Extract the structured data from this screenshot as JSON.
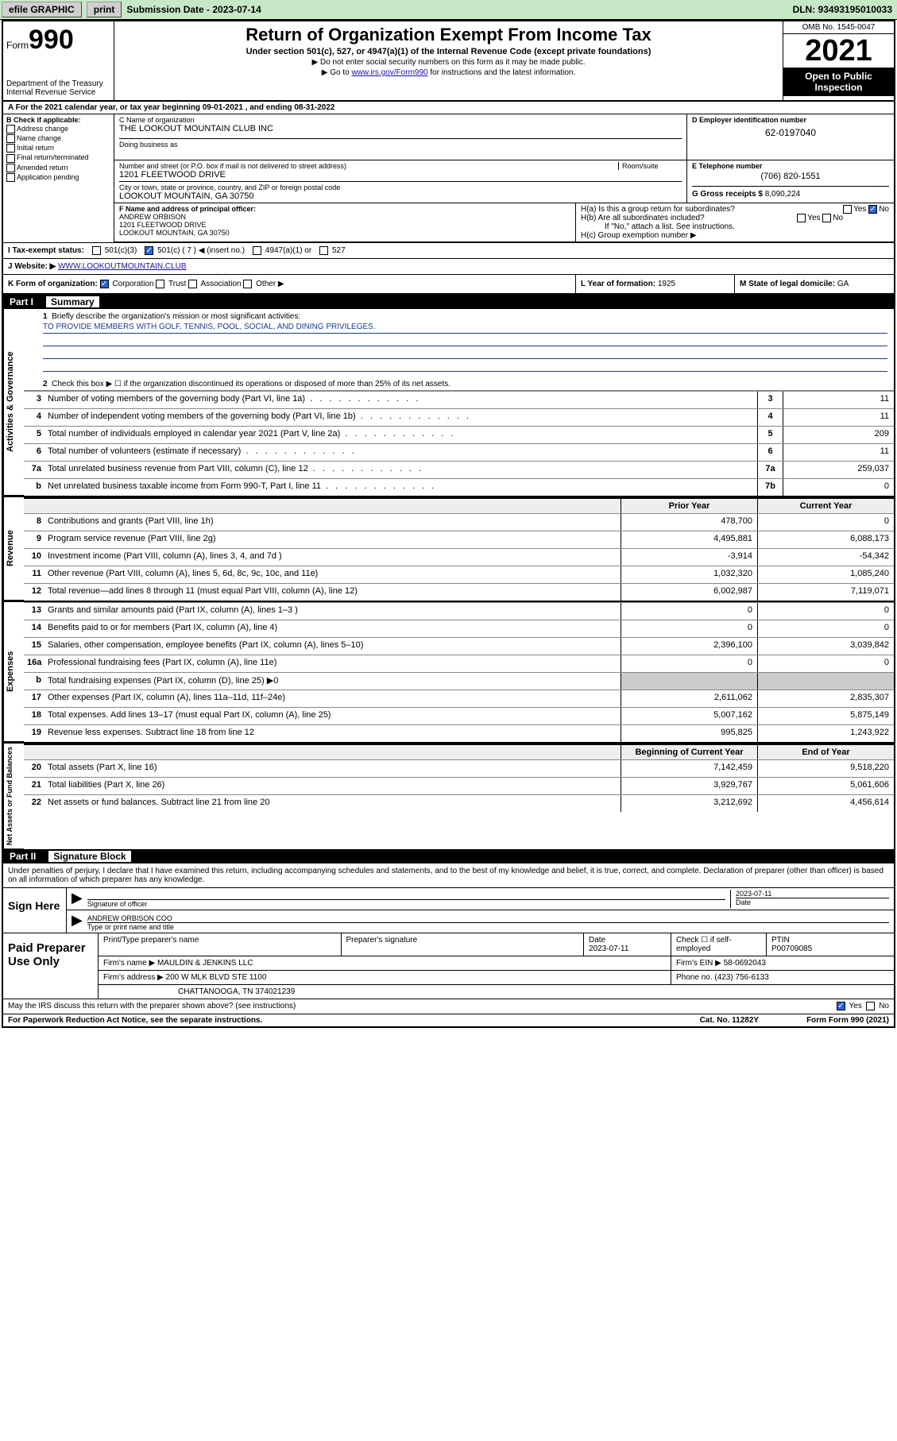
{
  "topbar": {
    "efile": "efile GRAPHIC",
    "print": "print",
    "submission": "Submission Date - 2023-07-14",
    "dln": "DLN: 93493195010033"
  },
  "header": {
    "form_word": "Form",
    "form_no": "990",
    "dept": "Department of the Treasury Internal Revenue Service",
    "title": "Return of Organization Exempt From Income Tax",
    "sub": "Under section 501(c), 527, or 4947(a)(1) of the Internal Revenue Code (except private foundations)",
    "note1": "▶ Do not enter social security numbers on this form as it may be made public.",
    "note2_pre": "▶ Go to ",
    "note2_link": "www.irs.gov/Form990",
    "note2_post": " for instructions and the latest information.",
    "omb": "OMB No. 1545-0047",
    "year": "2021",
    "open": "Open to Public Inspection"
  },
  "row_a": "A For the 2021 calendar year, or tax year beginning 09-01-2021   , and ending 08-31-2022",
  "b": {
    "label": "B Check if applicable:",
    "opts": [
      "Address change",
      "Name change",
      "Initial return",
      "Final return/terminated",
      "Amended return",
      "Application pending"
    ]
  },
  "c": {
    "name_lbl": "C Name of organization",
    "name": "THE LOOKOUT MOUNTAIN CLUB INC",
    "dba_lbl": "Doing business as",
    "addr_lbl": "Number and street (or P.O. box if mail is not delivered to street address)",
    "room_lbl": "Room/suite",
    "addr": "1201 FLEETWOOD DRIVE",
    "city_lbl": "City or town, state or province, country, and ZIP or foreign postal code",
    "city": "LOOKOUT MOUNTAIN, GA  30750"
  },
  "d": {
    "lbl": "D Employer identification number",
    "val": "62-0197040"
  },
  "e": {
    "lbl": "E Telephone number",
    "val": "(706) 820-1551"
  },
  "g": {
    "lbl": "G Gross receipts $",
    "val": "8,090,224"
  },
  "f": {
    "lbl": "F Name and address of principal officer:",
    "name": "ANDREW ORBISON",
    "addr1": "1201 FLEETWOOD DRIVE",
    "addr2": "LOOKOUT MOUNTAIN, GA  30750"
  },
  "h": {
    "a": "H(a)  Is this a group return for subordinates?",
    "b": "H(b)  Are all subordinates included?",
    "bnote": "If \"No,\" attach a list. See instructions.",
    "c": "H(c)  Group exemption number ▶",
    "yes": "Yes",
    "no": "No"
  },
  "i": {
    "lbl": "I  Tax-exempt status:",
    "c3": "501(c)(3)",
    "c": "501(c) ( 7 ) ◀ (insert no.)",
    "a1": "4947(a)(1) or",
    "s527": "527"
  },
  "j": {
    "lbl": "J  Website: ▶",
    "val": "WWW.LOOKOUTMOUNTAIN.CLUB"
  },
  "k": {
    "lbl": "K Form of organization:",
    "corp": "Corporation",
    "trust": "Trust",
    "assoc": "Association",
    "other": "Other ▶"
  },
  "l": {
    "lbl": "L Year of formation:",
    "val": "1925"
  },
  "m": {
    "lbl": "M State of legal domicile:",
    "val": "GA"
  },
  "part1": {
    "label": "Part I",
    "title": "Summary"
  },
  "s1": {
    "n1lbl": "Briefly describe the organization's mission or most significant activities:",
    "mission": "TO PROVIDE MEMBERS WITH GOLF, TENNIS, POOL, SOCIAL, AND DINING PRIVILEGES.",
    "n2": "Check this box ▶ ☐  if the organization discontinued its operations or disposed of more than 25% of its net assets.",
    "rows": [
      {
        "n": "3",
        "d": "Number of voting members of the governing body (Part VI, line 1a)",
        "box": "3",
        "v": "11"
      },
      {
        "n": "4",
        "d": "Number of independent voting members of the governing body (Part VI, line 1b)",
        "box": "4",
        "v": "11"
      },
      {
        "n": "5",
        "d": "Total number of individuals employed in calendar year 2021 (Part V, line 2a)",
        "box": "5",
        "v": "209"
      },
      {
        "n": "6",
        "d": "Total number of volunteers (estimate if necessary)",
        "box": "6",
        "v": "11"
      },
      {
        "n": "7a",
        "d": "Total unrelated business revenue from Part VIII, column (C), line 12",
        "box": "7a",
        "v": "259,037"
      },
      {
        "n": "b",
        "d": "Net unrelated business taxable income from Form 990-T, Part I, line 11",
        "box": "7b",
        "v": "0"
      }
    ]
  },
  "s2head": {
    "prior": "Prior Year",
    "current": "Current Year"
  },
  "revenue": [
    {
      "n": "8",
      "d": "Contributions and grants (Part VIII, line 1h)",
      "v1": "478,700",
      "v2": "0"
    },
    {
      "n": "9",
      "d": "Program service revenue (Part VIII, line 2g)",
      "v1": "4,495,881",
      "v2": "6,088,173"
    },
    {
      "n": "10",
      "d": "Investment income (Part VIII, column (A), lines 3, 4, and 7d )",
      "v1": "-3,914",
      "v2": "-54,342"
    },
    {
      "n": "11",
      "d": "Other revenue (Part VIII, column (A), lines 5, 6d, 8c, 9c, 10c, and 11e)",
      "v1": "1,032,320",
      "v2": "1,085,240"
    },
    {
      "n": "12",
      "d": "Total revenue—add lines 8 through 11 (must equal Part VIII, column (A), line 12)",
      "v1": "6,002,987",
      "v2": "7,119,071"
    }
  ],
  "expenses": [
    {
      "n": "13",
      "d": "Grants and similar amounts paid (Part IX, column (A), lines 1–3 )",
      "v1": "0",
      "v2": "0"
    },
    {
      "n": "14",
      "d": "Benefits paid to or for members (Part IX, column (A), line 4)",
      "v1": "0",
      "v2": "0"
    },
    {
      "n": "15",
      "d": "Salaries, other compensation, employee benefits (Part IX, column (A), lines 5–10)",
      "v1": "2,396,100",
      "v2": "3,039,842"
    },
    {
      "n": "16a",
      "d": "Professional fundraising fees (Part IX, column (A), line 11e)",
      "v1": "0",
      "v2": "0"
    },
    {
      "n": "b",
      "d": "Total fundraising expenses (Part IX, column (D), line 25) ▶0",
      "grey": true
    },
    {
      "n": "17",
      "d": "Other expenses (Part IX, column (A), lines 11a–11d, 11f–24e)",
      "v1": "2,611,062",
      "v2": "2,835,307"
    },
    {
      "n": "18",
      "d": "Total expenses. Add lines 13–17 (must equal Part IX, column (A), line 25)",
      "v1": "5,007,162",
      "v2": "5,875,149"
    },
    {
      "n": "19",
      "d": "Revenue less expenses. Subtract line 18 from line 12",
      "v1": "995,825",
      "v2": "1,243,922"
    }
  ],
  "s4head": {
    "begin": "Beginning of Current Year",
    "end": "End of Year"
  },
  "netassets": [
    {
      "n": "20",
      "d": "Total assets (Part X, line 16)",
      "v1": "7,142,459",
      "v2": "9,518,220"
    },
    {
      "n": "21",
      "d": "Total liabilities (Part X, line 26)",
      "v1": "3,929,767",
      "v2": "5,061,606"
    },
    {
      "n": "22",
      "d": "Net assets or fund balances. Subtract line 21 from line 20",
      "v1": "3,212,692",
      "v2": "4,456,614"
    }
  ],
  "part2": {
    "label": "Part II",
    "title": "Signature Block"
  },
  "sig": {
    "intro": "Under penalties of perjury, I declare that I have examined this return, including accompanying schedules and statements, and to the best of my knowledge and belief, it is true, correct, and complete. Declaration of preparer (other than officer) is based on all information of which preparer has any knowledge.",
    "here": "Sign Here",
    "sig_lbl": "Signature of officer",
    "date_lbl": "Date",
    "date": "2023-07-11",
    "name": "ANDREW ORBISON COO",
    "name_lbl": "Type or print name and title"
  },
  "prep": {
    "label": "Paid Preparer Use Only",
    "h1": "Print/Type preparer's name",
    "h2": "Preparer's signature",
    "h3": "Date",
    "h4": "Check ☐ if self-employed",
    "h5": "PTIN",
    "date": "2023-07-11",
    "ptin": "P00709085",
    "firm_lbl": "Firm's name    ▶",
    "firm": "MAULDIN & JENKINS LLC",
    "ein_lbl": "Firm's EIN ▶",
    "ein": "58-0692043",
    "addr_lbl": "Firm's address ▶",
    "addr1": "200 W MLK BLVD STE 1100",
    "addr2": "CHATTANOOGA, TN  374021239",
    "phone_lbl": "Phone no.",
    "phone": "(423) 756-6133"
  },
  "discuss": {
    "q": "May the IRS discuss this return with the preparer shown above? (see instructions)",
    "yes": "Yes",
    "no": "No"
  },
  "footer": {
    "left": "For Paperwork Reduction Act Notice, see the separate instructions.",
    "mid": "Cat. No. 11282Y",
    "right": "Form 990 (2021)"
  },
  "side": {
    "gov": "Activities & Governance",
    "rev": "Revenue",
    "exp": "Expenses",
    "net": "Net Assets or Fund Balances"
  }
}
